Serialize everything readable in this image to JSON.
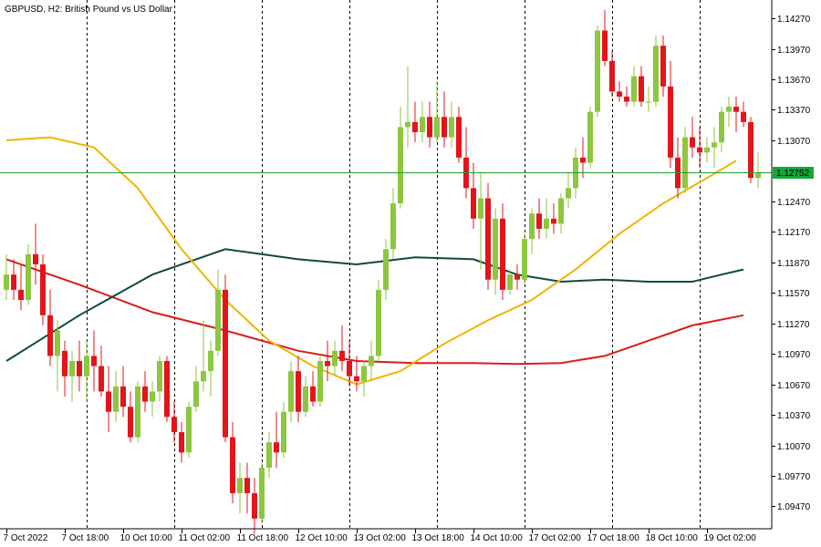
{
  "chart_data": {
    "type": "candlestick",
    "title": "GBPUSD, H2:  British Pound vs US Dollar",
    "ylim": [
      1.0925,
      1.1445
    ],
    "y_ticks": [
      "1.14270",
      "1.13970",
      "1.13670",
      "1.13370",
      "1.13070",
      "1.12470",
      "1.12170",
      "1.11870",
      "1.11570",
      "1.11270",
      "1.10970",
      "1.10670",
      "1.10370",
      "1.10070",
      "1.09770",
      "1.09470"
    ],
    "x_labels": [
      "7 Oct 2022",
      "7 Oct 18:00",
      "10 Oct 10:00",
      "11 Oct 02:00",
      "11 Oct 18:00",
      "12 Oct 10:00",
      "13 Oct 02:00",
      "13 Oct 18:00",
      "14 Oct 10:00",
      "17 Oct 02:00",
      "17 Oct 18:00",
      "18 Oct 10:00",
      "19 Oct 02:00"
    ],
    "x_label_bars": [
      0,
      8,
      16,
      24,
      32,
      40,
      48,
      56,
      64,
      72,
      80,
      88,
      96
    ],
    "vertical_grid_bars": [
      11,
      23,
      35,
      47,
      59,
      71,
      83,
      95
    ],
    "current_price": {
      "label": "1.12752",
      "value": 1.12752
    },
    "colors": {
      "bull": "#8dc63f",
      "bear": "#e4141b",
      "price_line": "#1e9e2e",
      "label_bg": "#12a838",
      "ma_fast": "#f0b400",
      "ma_mid": "#0f4a3c",
      "ma_slow": "#d81c1c",
      "grid": "#000000"
    },
    "candles": [
      [
        1.116,
        1.1195,
        1.115,
        1.1175
      ],
      [
        1.1175,
        1.119,
        1.115,
        1.116
      ],
      [
        1.116,
        1.1185,
        1.114,
        1.115
      ],
      [
        1.115,
        1.1205,
        1.1145,
        1.1195
      ],
      [
        1.1195,
        1.1225,
        1.1165,
        1.1185
      ],
      [
        1.1185,
        1.1195,
        1.1125,
        1.1135
      ],
      [
        1.1135,
        1.116,
        1.1085,
        1.1095
      ],
      [
        1.1095,
        1.113,
        1.106,
        1.112
      ],
      [
        1.11,
        1.111,
        1.1055,
        1.1075
      ],
      [
        1.1075,
        1.11,
        1.105,
        1.109
      ],
      [
        1.109,
        1.111,
        1.106,
        1.1075
      ],
      [
        1.1075,
        1.111,
        1.105,
        1.1095
      ],
      [
        1.1095,
        1.112,
        1.106,
        1.1085
      ],
      [
        1.1085,
        1.1105,
        1.1055,
        1.106
      ],
      [
        1.106,
        1.1085,
        1.102,
        1.104
      ],
      [
        1.104,
        1.108,
        1.103,
        1.1065
      ],
      [
        1.1065,
        1.1085,
        1.1035,
        1.1045
      ],
      [
        1.1045,
        1.106,
        1.101,
        1.1015
      ],
      [
        1.1015,
        1.107,
        1.101,
        1.1065
      ],
      [
        1.1065,
        1.108,
        1.104,
        1.105
      ],
      [
        1.105,
        1.107,
        1.1035,
        1.106
      ],
      [
        1.106,
        1.1095,
        1.105,
        1.109
      ],
      [
        1.109,
        1.1095,
        1.103,
        1.1035
      ],
      [
        1.1035,
        1.105,
        1.101,
        1.102
      ],
      [
        1.102,
        1.103,
        1.099,
        1.1
      ],
      [
        1.1,
        1.105,
        1.0995,
        1.1045
      ],
      [
        1.1045,
        1.1085,
        1.104,
        1.107
      ],
      [
        1.107,
        1.113,
        1.106,
        1.108
      ],
      [
        1.108,
        1.111,
        1.1055,
        1.11
      ],
      [
        1.11,
        1.118,
        1.1095,
        1.116
      ],
      [
        1.116,
        1.1175,
        1.101,
        1.1015
      ],
      [
        1.1015,
        1.103,
        1.095,
        1.096
      ],
      [
        1.096,
        1.099,
        1.094,
        1.0975
      ],
      [
        1.0975,
        1.099,
        1.094,
        1.096
      ],
      [
        1.096,
        1.0975,
        1.092,
        1.0935
      ],
      [
        1.0935,
        1.099,
        1.093,
        1.0985
      ],
      [
        1.0985,
        1.102,
        1.0975,
        1.101
      ],
      [
        1.101,
        1.104,
        1.0985,
        1.1
      ],
      [
        1.1,
        1.105,
        1.0995,
        1.104
      ],
      [
        1.104,
        1.109,
        1.103,
        1.108
      ],
      [
        1.108,
        1.1095,
        1.103,
        1.104
      ],
      [
        1.104,
        1.1075,
        1.1035,
        1.1065
      ],
      [
        1.1065,
        1.108,
        1.1045,
        1.105
      ],
      [
        1.105,
        1.1095,
        1.1045,
        1.109
      ],
      [
        1.109,
        1.111,
        1.107,
        1.1085
      ],
      [
        1.1085,
        1.111,
        1.1075,
        1.11
      ],
      [
        1.11,
        1.1125,
        1.108,
        1.109
      ],
      [
        1.109,
        1.111,
        1.1065,
        1.1075
      ],
      [
        1.1075,
        1.1095,
        1.106,
        1.107
      ],
      [
        1.107,
        1.109,
        1.1055,
        1.1085
      ],
      [
        1.1085,
        1.111,
        1.107,
        1.1095
      ],
      [
        1.1095,
        1.117,
        1.109,
        1.116
      ],
      [
        1.116,
        1.121,
        1.115,
        1.12
      ],
      [
        1.12,
        1.126,
        1.119,
        1.1245
      ],
      [
        1.1245,
        1.134,
        1.124,
        1.132
      ],
      [
        1.132,
        1.138,
        1.13,
        1.1325
      ],
      [
        1.1325,
        1.1345,
        1.1305,
        1.1315
      ],
      [
        1.1315,
        1.1345,
        1.1305,
        1.133
      ],
      [
        1.133,
        1.1345,
        1.13,
        1.131
      ],
      [
        1.131,
        1.1365,
        1.1305,
        1.133
      ],
      [
        1.133,
        1.1355,
        1.13,
        1.131
      ],
      [
        1.131,
        1.1345,
        1.13,
        1.133
      ],
      [
        1.133,
        1.134,
        1.1285,
        1.129
      ],
      [
        1.129,
        1.132,
        1.125,
        1.126
      ],
      [
        1.126,
        1.1285,
        1.122,
        1.123
      ],
      [
        1.123,
        1.1275,
        1.118,
        1.125
      ],
      [
        1.125,
        1.1265,
        1.116,
        1.117
      ],
      [
        1.117,
        1.124,
        1.1155,
        1.123
      ],
      [
        1.123,
        1.1245,
        1.115,
        1.116
      ],
      [
        1.116,
        1.118,
        1.1155,
        1.1175
      ],
      [
        1.1175,
        1.1185,
        1.116,
        1.117
      ],
      [
        1.117,
        1.1215,
        1.1165,
        1.121
      ],
      [
        1.121,
        1.124,
        1.1195,
        1.1235
      ],
      [
        1.1235,
        1.125,
        1.121,
        1.122
      ],
      [
        1.122,
        1.125,
        1.121,
        1.123
      ],
      [
        1.123,
        1.1245,
        1.1215,
        1.1225
      ],
      [
        1.1225,
        1.1255,
        1.1215,
        1.125
      ],
      [
        1.125,
        1.1275,
        1.124,
        1.126
      ],
      [
        1.126,
        1.13,
        1.125,
        1.129
      ],
      [
        1.129,
        1.131,
        1.127,
        1.1285
      ],
      [
        1.1285,
        1.134,
        1.128,
        1.1335
      ],
      [
        1.1335,
        1.142,
        1.133,
        1.1415
      ],
      [
        1.1415,
        1.1435,
        1.138,
        1.1385
      ],
      [
        1.1385,
        1.1395,
        1.135,
        1.1355
      ],
      [
        1.1355,
        1.1365,
        1.1345,
        1.135
      ],
      [
        1.135,
        1.136,
        1.134,
        1.1345
      ],
      [
        1.1345,
        1.138,
        1.134,
        1.137
      ],
      [
        1.137,
        1.138,
        1.134,
        1.1345
      ],
      [
        1.1345,
        1.136,
        1.1335,
        1.1345
      ],
      [
        1.1345,
        1.141,
        1.134,
        1.14
      ],
      [
        1.14,
        1.141,
        1.135,
        1.136
      ],
      [
        1.136,
        1.1385,
        1.128,
        1.129
      ],
      [
        1.129,
        1.131,
        1.125,
        1.126
      ],
      [
        1.126,
        1.132,
        1.1255,
        1.131
      ],
      [
        1.131,
        1.133,
        1.129,
        1.13
      ],
      [
        1.13,
        1.132,
        1.128,
        1.1295
      ],
      [
        1.1295,
        1.131,
        1.1285,
        1.13
      ],
      [
        1.13,
        1.132,
        1.128,
        1.1305
      ],
      [
        1.1305,
        1.134,
        1.1295,
        1.1335
      ],
      [
        1.1335,
        1.135,
        1.132,
        1.134
      ],
      [
        1.134,
        1.135,
        1.1315,
        1.1335
      ],
      [
        1.1335,
        1.1345,
        1.132,
        1.1325
      ],
      [
        1.1325,
        1.133,
        1.1265,
        1.127
      ],
      [
        1.127,
        1.1295,
        1.126,
        1.1275
      ]
    ],
    "ma_fast": [
      [
        0,
        1.1307
      ],
      [
        6,
        1.131
      ],
      [
        12,
        1.13
      ],
      [
        18,
        1.126
      ],
      [
        24,
        1.12
      ],
      [
        30,
        1.115
      ],
      [
        36,
        1.111
      ],
      [
        42,
        1.1085
      ],
      [
        48,
        1.1067
      ],
      [
        54,
        1.108
      ],
      [
        60,
        1.1107
      ],
      [
        66,
        1.113
      ],
      [
        72,
        1.115
      ],
      [
        78,
        1.118
      ],
      [
        84,
        1.1215
      ],
      [
        90,
        1.1245
      ],
      [
        96,
        1.127
      ],
      [
        100,
        1.1287
      ]
    ],
    "ma_mid": [
      [
        0,
        1.109
      ],
      [
        10,
        1.1135
      ],
      [
        20,
        1.1175
      ],
      [
        30,
        1.12
      ],
      [
        40,
        1.119
      ],
      [
        48,
        1.1185
      ],
      [
        56,
        1.1192
      ],
      [
        64,
        1.119
      ],
      [
        70,
        1.1175
      ],
      [
        76,
        1.1168
      ],
      [
        82,
        1.117
      ],
      [
        88,
        1.1168
      ],
      [
        94,
        1.1168
      ],
      [
        98,
        1.1175
      ],
      [
        101,
        1.118
      ]
    ],
    "ma_slow": [
      [
        0,
        1.119
      ],
      [
        10,
        1.1165
      ],
      [
        20,
        1.1138
      ],
      [
        30,
        1.112
      ],
      [
        40,
        1.11
      ],
      [
        48,
        1.109
      ],
      [
        56,
        1.1088
      ],
      [
        64,
        1.1088
      ],
      [
        70,
        1.1087
      ],
      [
        76,
        1.1088
      ],
      [
        82,
        1.1095
      ],
      [
        88,
        1.111
      ],
      [
        94,
        1.1125
      ],
      [
        101,
        1.1135
      ]
    ]
  }
}
